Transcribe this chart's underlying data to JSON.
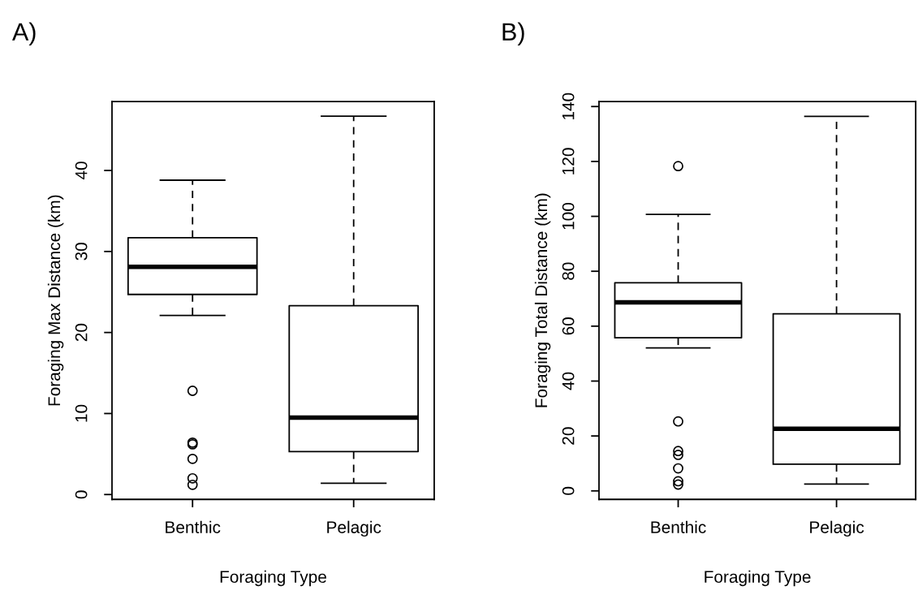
{
  "chart_data": [
    {
      "type": "box",
      "title": "A)",
      "xlabel": "Foraging Type",
      "ylabel": "Foraging Max Distance (km)",
      "categories": [
        "Benthic",
        "Pelagic"
      ],
      "boxes": [
        {
          "low": 22.1,
          "q1": 24.7,
          "median": 28.1,
          "q3": 31.7,
          "high": 38.8,
          "outliers": [
            12.8,
            6.4,
            6.2,
            4.4,
            2.0,
            1.2
          ]
        },
        {
          "low": 1.4,
          "q1": 5.3,
          "median": 9.5,
          "q3": 23.3,
          "high": 46.7
        }
      ],
      "ylim": [
        -0.6,
        48.5
      ],
      "yticks": [
        0,
        10,
        20,
        30,
        40
      ]
    },
    {
      "type": "box",
      "title": "B)",
      "xlabel": "Foraging Type",
      "ylabel": "Foraging Total Distance (km)",
      "categories": [
        "Benthic",
        "Pelagic"
      ],
      "boxes": [
        {
          "low": 52.1,
          "q1": 55.8,
          "median": 68.7,
          "q3": 75.8,
          "high": 100.7,
          "outliers": [
            118.3,
            25.3,
            14.5,
            13.1,
            8.2,
            3.5,
            2.3
          ]
        },
        {
          "low": 2.5,
          "q1": 9.7,
          "median": 22.6,
          "q3": 64.5,
          "high": 136.4
        }
      ],
      "ylim": [
        -3.1,
        141.8
      ],
      "yticks": [
        0,
        20,
        40,
        60,
        80,
        100,
        120,
        140
      ]
    }
  ]
}
